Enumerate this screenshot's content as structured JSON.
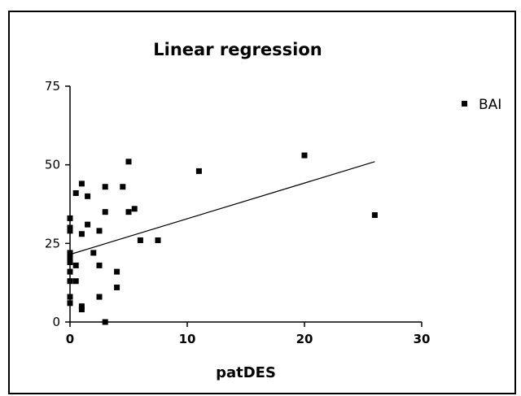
{
  "chart_data": {
    "type": "scatter",
    "title": "Linear regression",
    "xlabel": "patDES",
    "ylabel": "",
    "xlim": [
      0,
      30
    ],
    "ylim": [
      0,
      75
    ],
    "xticks": [
      0,
      10,
      20,
      30
    ],
    "yticks": [
      0,
      25,
      50,
      75
    ],
    "legend_position": "top-right",
    "series": [
      {
        "name": "BAI",
        "marker": "square",
        "color": "#000000",
        "points": [
          [
            0,
            33
          ],
          [
            0,
            30
          ],
          [
            0,
            29
          ],
          [
            0,
            22
          ],
          [
            0,
            21
          ],
          [
            0,
            20
          ],
          [
            0,
            19
          ],
          [
            0,
            16
          ],
          [
            0,
            13
          ],
          [
            0,
            8
          ],
          [
            0,
            6
          ],
          [
            0.5,
            41
          ],
          [
            0.5,
            18
          ],
          [
            0.5,
            13
          ],
          [
            1,
            44
          ],
          [
            1,
            28
          ],
          [
            1,
            5
          ],
          [
            1,
            4
          ],
          [
            1.5,
            40
          ],
          [
            1.5,
            31
          ],
          [
            2,
            22
          ],
          [
            2.5,
            29
          ],
          [
            2.5,
            18
          ],
          [
            2.5,
            8
          ],
          [
            3,
            43
          ],
          [
            3,
            35
          ],
          [
            3,
            0
          ],
          [
            4,
            16
          ],
          [
            4,
            11
          ],
          [
            4.5,
            43
          ],
          [
            5,
            51
          ],
          [
            5,
            35
          ],
          [
            5.5,
            36
          ],
          [
            6,
            26
          ],
          [
            7.5,
            26
          ],
          [
            11,
            48
          ],
          [
            20,
            53
          ],
          [
            26,
            34
          ]
        ]
      }
    ],
    "regression_line": {
      "x": [
        0,
        26
      ],
      "y": [
        21.5,
        51
      ]
    }
  }
}
